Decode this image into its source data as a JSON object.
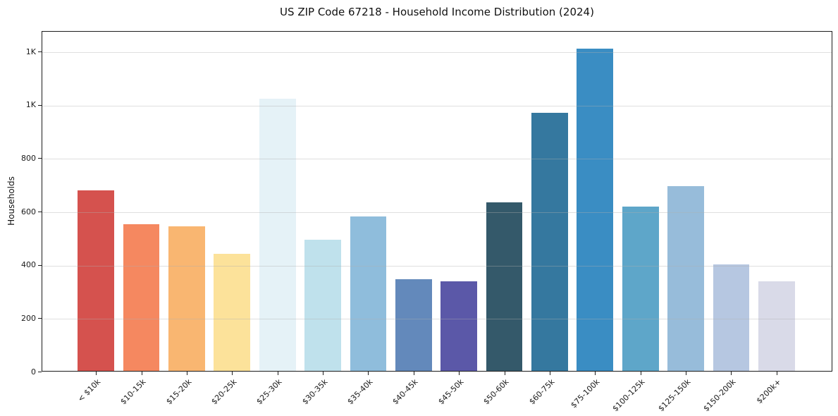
{
  "chart_data": {
    "type": "bar",
    "title": "US ZIP Code 67218 - Household Income Distribution (2024)",
    "xlabel": "",
    "ylabel": "Households",
    "ylim": [
      0,
      1277
    ],
    "grid": "horizontal",
    "legend": "none",
    "categories": [
      "< $10k",
      "$10-15k",
      "$15-20k",
      "$20-25k",
      "$25-30k",
      "$30-35k",
      "$35-40k",
      "$40-45k",
      "$45-50k",
      "$50-60k",
      "$60-75k",
      "$75-100k",
      "$100-125k",
      "$125-150k",
      "$150-200k",
      "$200k+"
    ],
    "values": [
      681,
      553,
      545,
      441,
      1026,
      494,
      582,
      344,
      338,
      634,
      971,
      1213,
      618,
      696,
      400,
      336
    ],
    "bar_colors": [
      "#d5524e",
      "#f58860",
      "#f9b671",
      "#fce29a",
      "#e5f2f7",
      "#bfe1ec",
      "#8fbddc",
      "#6389bb",
      "#5b58a8",
      "#34596a",
      "#35789f",
      "#3a8dc3",
      "#5ea6c9",
      "#97bcda",
      "#b6c7e1",
      "#d9dae8"
    ],
    "yticks": [
      {
        "value": 0,
        "label": "0"
      },
      {
        "value": 200,
        "label": "200"
      },
      {
        "value": 400,
        "label": "400"
      },
      {
        "value": 600,
        "label": "600"
      },
      {
        "value": 800,
        "label": "800"
      },
      {
        "value": 1000,
        "label": "1K"
      },
      {
        "value": 1200,
        "label": "1K"
      }
    ]
  }
}
